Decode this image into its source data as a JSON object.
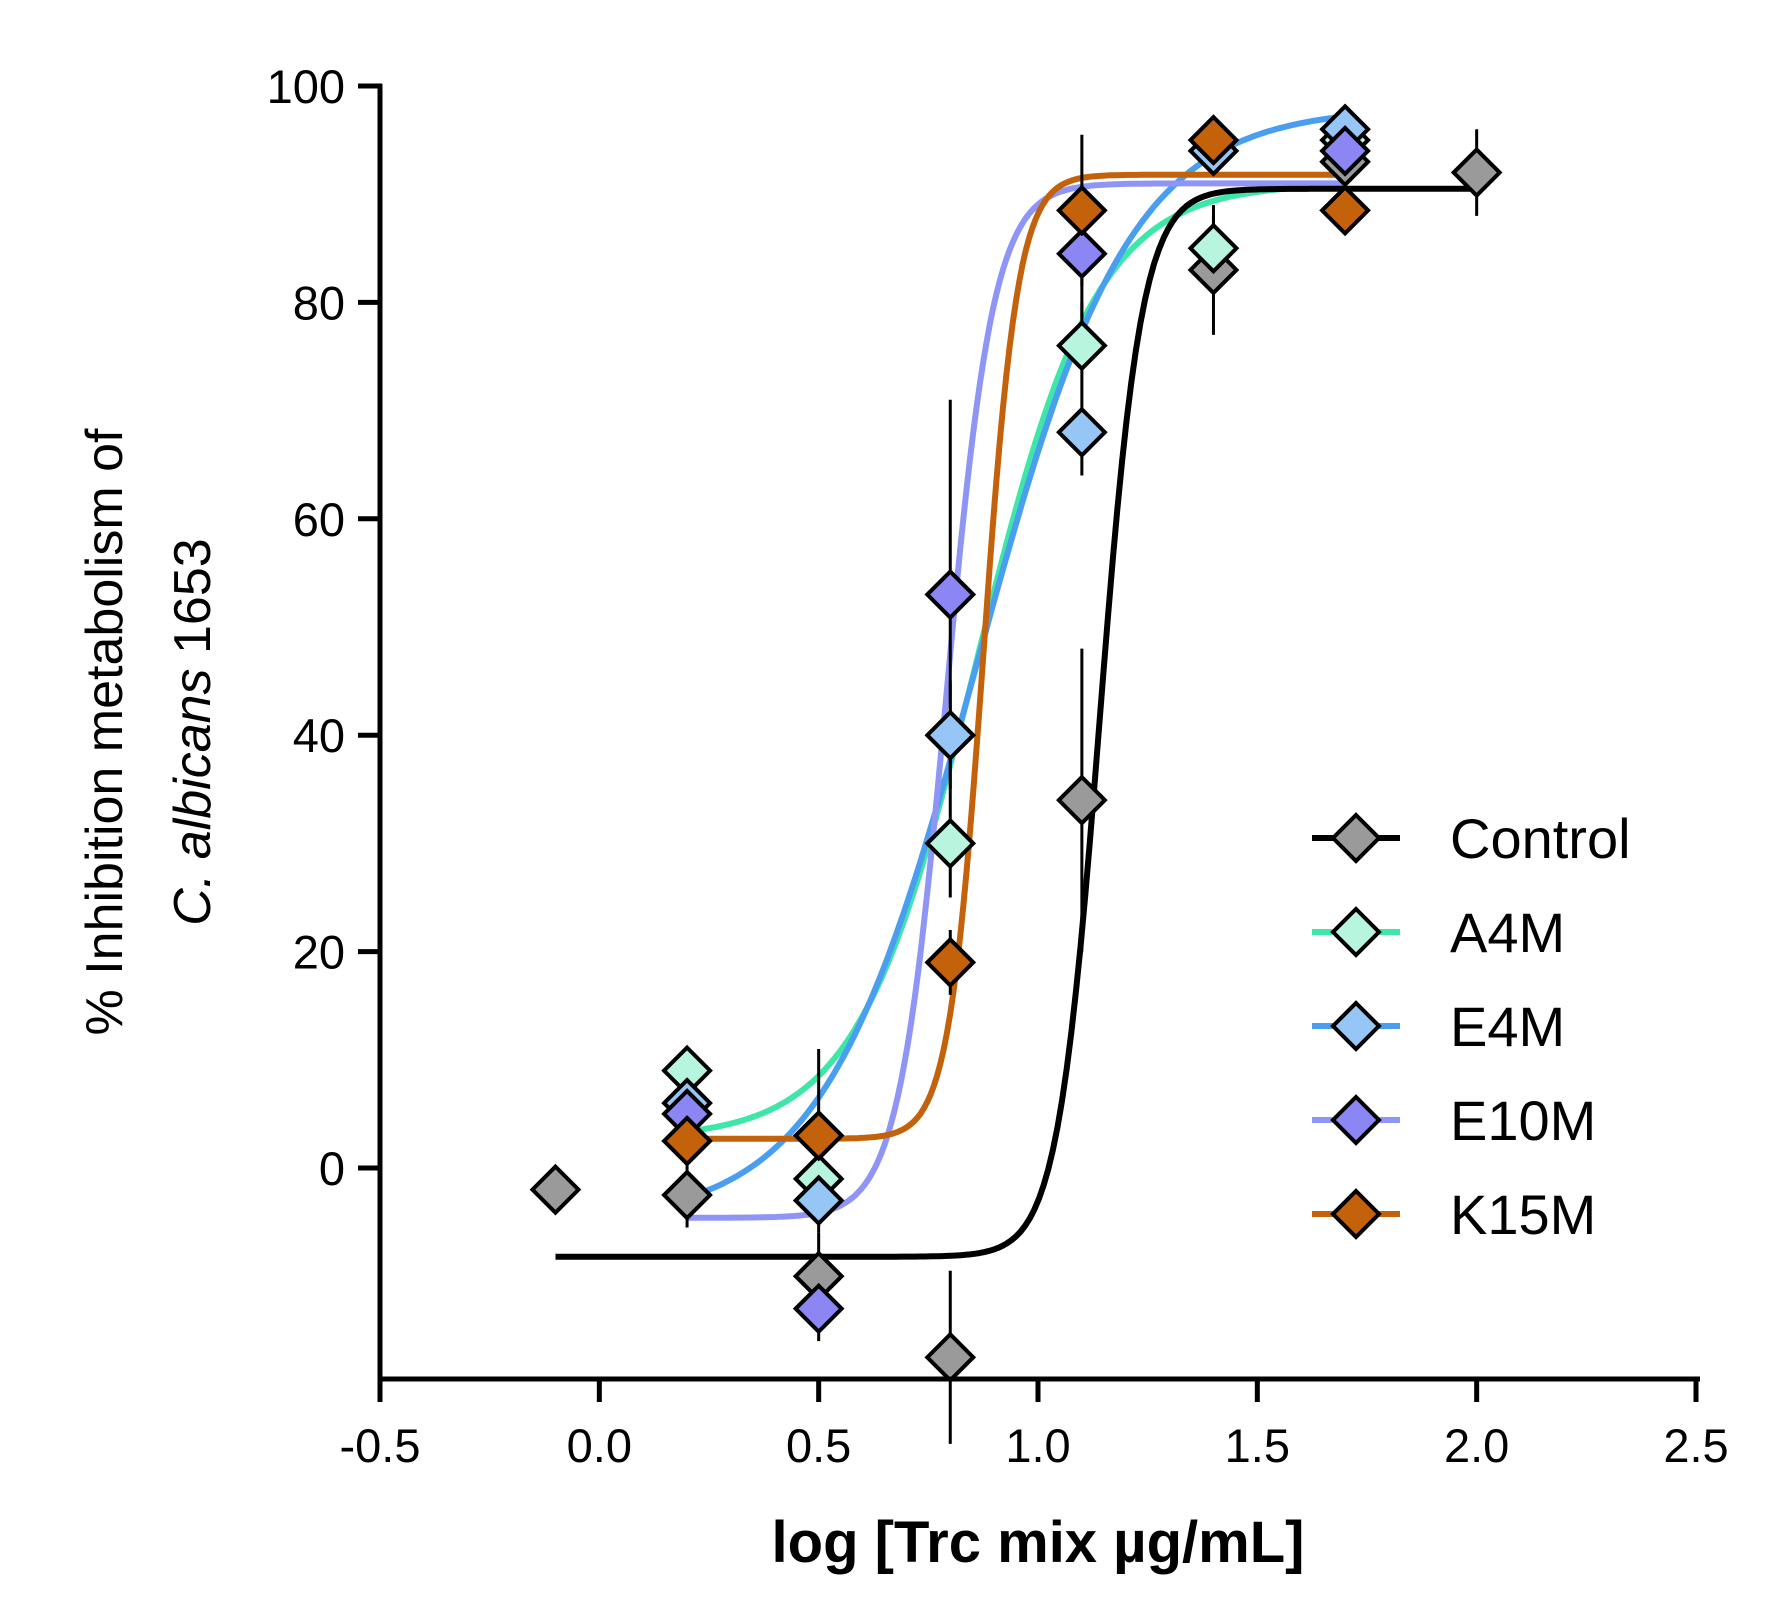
{
  "chart_data": {
    "type": "scatter",
    "xlabel": "log [Trc mix µg/mL]",
    "ylabel_line1": "% Inhibition metabolism of",
    "ylabel_line2_italic": "C. albicans",
    "ylabel_line2_rest": " 1653",
    "xlim": [
      -0.5,
      2.5
    ],
    "ylim": [
      -20,
      100
    ],
    "xticks": [
      -0.5,
      0.0,
      0.5,
      1.0,
      1.5,
      2.0,
      2.5
    ],
    "xtick_labels": [
      "-0.5",
      "0.0",
      "0.5",
      "1.0",
      "1.5",
      "2.0",
      "2.5"
    ],
    "yticks": [
      0,
      20,
      40,
      60,
      80,
      100
    ],
    "ytick_labels": [
      "0",
      "20",
      "40",
      "60",
      "80",
      "100"
    ],
    "legend_position": "right",
    "series": [
      {
        "name": "Control",
        "marker_color": "#9a9a9a",
        "line_color": "#000000",
        "x": [
          -0.1,
          0.2,
          0.5,
          0.8,
          1.1,
          1.4,
          1.7,
          2.0
        ],
        "y": [
          -2,
          -2.5,
          -10,
          -17.5,
          34,
          83,
          93,
          92
        ],
        "err": [
          0,
          3,
          4,
          8,
          14,
          6,
          3,
          4
        ],
        "fit": {
          "bottom": -8.2,
          "top": 90.5,
          "logec50": 1.14,
          "hill": 9,
          "xmin": -0.1,
          "xmax": 2.0
        }
      },
      {
        "name": "A4M",
        "marker_color": "#b7f5de",
        "line_color": "#3ee6a8",
        "x": [
          0.2,
          0.5,
          0.8,
          1.1,
          1.4,
          1.7
        ],
        "y": [
          9,
          -1,
          30,
          76,
          85,
          95
        ],
        "err": [
          2,
          3,
          5,
          4,
          3,
          2
        ],
        "fit": {
          "bottom": 2.7,
          "top": 91,
          "logec50": 0.86,
          "hill": 3.2,
          "xmin": 0.2,
          "xmax": 1.7
        }
      },
      {
        "name": "E4M",
        "marker_color": "#95c6f5",
        "line_color": "#4a9ef0",
        "x": [
          0.2,
          0.5,
          0.8,
          1.1,
          1.4,
          1.7
        ],
        "y": [
          6,
          -3,
          40,
          68,
          94,
          96
        ],
        "err": [
          2,
          3,
          5,
          4,
          2,
          2
        ],
        "fit": {
          "bottom": -5,
          "top": 98,
          "logec50": 0.86,
          "hill": 2.5,
          "xmin": 0.2,
          "xmax": 1.7
        }
      },
      {
        "name": "E10M",
        "marker_color": "#8b86f3",
        "line_color": "#8f95f5",
        "x": [
          0.2,
          0.5,
          0.8,
          1.1,
          1.7
        ],
        "y": [
          5,
          -13,
          53,
          84.5,
          94
        ],
        "err": [
          2,
          3,
          18,
          6,
          3
        ],
        "fit": {
          "bottom": -4.6,
          "top": 91,
          "logec50": 0.79,
          "hill": 8,
          "xmin": 0.2,
          "xmax": 1.7
        }
      },
      {
        "name": "K15M",
        "marker_color": "#c4620c",
        "line_color": "#c4620c",
        "x": [
          0.2,
          0.5,
          0.8,
          1.1,
          1.4,
          1.7
        ],
        "y": [
          2.5,
          3,
          19,
          88.5,
          95,
          88.5
        ],
        "err": [
          2,
          8,
          3,
          7,
          2,
          2
        ],
        "fit": {
          "bottom": 2.7,
          "top": 91.8,
          "logec50": 0.875,
          "hill": 11,
          "xmin": 0.2,
          "xmax": 1.7
        }
      }
    ]
  }
}
